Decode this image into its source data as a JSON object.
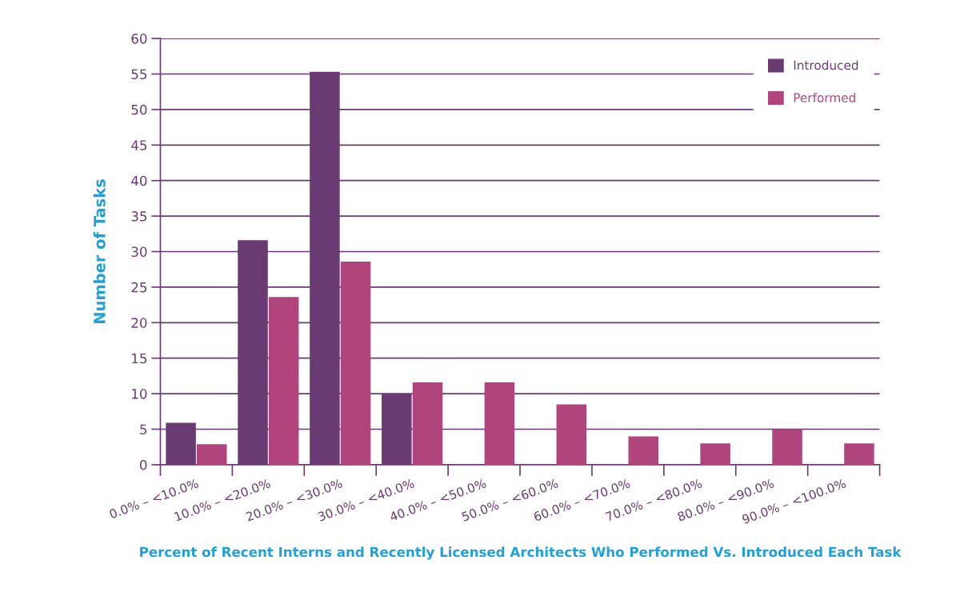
{
  "chart_data": {
    "type": "bar",
    "xlabel": "Percent of Recent Interns and Recently Licensed Architects Who Performed Vs. Introduced Each Task",
    "ylabel": "Number of Tasks",
    "categories": [
      "0.0% – <10.0%",
      "10.0% – <20.0%",
      "20.0% – <30.0%",
      "30.0% – <40.0%",
      "40.0% – <50.0%",
      "50.0% – <60.0%",
      "60.0% – <70.0%",
      "70.0% – <80.0%",
      "80.0% – <90.0%",
      "90.0% – <100.0%"
    ],
    "series": [
      {
        "name": "Introduced",
        "color": "#6a3a72",
        "values": [
          5.9,
          31.6,
          55.3,
          10,
          null,
          null,
          null,
          null,
          null,
          null
        ]
      },
      {
        "name": "Performed",
        "color": "#b0457e",
        "values": [
          2.9,
          23.6,
          28.6,
          11.6,
          11.6,
          8.5,
          4,
          3,
          5,
          3
        ]
      }
    ],
    "ylim": [
      0,
      60
    ],
    "yticks": [
      0,
      5,
      10,
      15,
      20,
      25,
      30,
      35,
      40,
      45,
      50,
      55,
      60
    ],
    "grid": "y",
    "legend": "top right"
  }
}
